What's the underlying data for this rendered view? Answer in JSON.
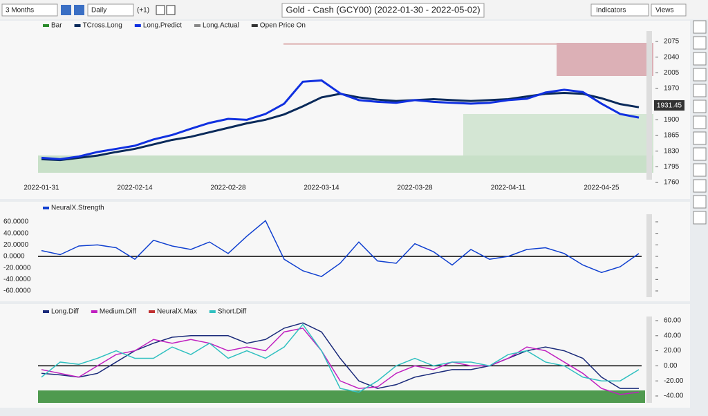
{
  "toolbar": {
    "range": "3 Months",
    "interval": "Daily",
    "offset": "(+1)",
    "title": "Gold - Cash (GCY00) (2022-01-30 - 2022-05-02)",
    "indicators": "Indicators",
    "views": "Views"
  },
  "chart_data": [
    {
      "type": "line",
      "price_label": "1931.45",
      "legend": [
        {
          "name": "Bar",
          "color": "#2a8a2a"
        },
        {
          "name": "TCross.Long",
          "color": "#0a2a5a"
        },
        {
          "name": "Long.Predict",
          "color": "#1030e0"
        },
        {
          "name": "Long.Actual",
          "color": "#888888"
        },
        {
          "name": "Open Price On",
          "color": "#333333"
        }
      ],
      "categories": [
        "2022-01-31",
        null,
        null,
        null,
        null,
        "2022-02-14",
        null,
        null,
        null,
        null,
        "2022-02-28",
        null,
        null,
        null,
        null,
        "2022-03-14",
        null,
        null,
        null,
        null,
        "2022-03-28",
        null,
        null,
        null,
        null,
        "2022-04-11",
        null,
        null,
        null,
        null,
        "2022-04-25",
        null,
        null
      ],
      "series": [
        {
          "name": "TCross.Long",
          "color": "#0a2a5a",
          "values": [
            1812,
            1810,
            1815,
            1820,
            1828,
            1835,
            1845,
            1855,
            1862,
            1872,
            1882,
            1892,
            1900,
            1912,
            1930,
            1950,
            1958,
            1950,
            1945,
            1942,
            1944,
            1946,
            1944,
            1942,
            1944,
            1946,
            1952,
            1958,
            1960,
            1958,
            1948,
            1935,
            1928
          ]
        },
        {
          "name": "Long.Predict",
          "color": "#1030e0",
          "values": [
            1815,
            1812,
            1818,
            1828,
            1835,
            1842,
            1856,
            1866,
            1880,
            1893,
            1902,
            1900,
            1913,
            1936,
            1985,
            1988,
            1959,
            1944,
            1940,
            1938,
            1944,
            1940,
            1938,
            1936,
            1938,
            1944,
            1947,
            1961,
            1967,
            1962,
            1936,
            1913,
            1905
          ]
        }
      ],
      "ylim": [
        1760,
        2075
      ],
      "yticks": [
        1760,
        1795,
        1830,
        1865,
        1900,
        1970,
        2005,
        2040,
        2075
      ]
    },
    {
      "type": "line",
      "legend": [
        {
          "name": "NeuralX.Strength",
          "color": "#1040d0"
        }
      ],
      "series": [
        {
          "name": "NeuralX.Strength",
          "color": "#1040d0",
          "values": [
            10,
            3,
            18,
            20,
            15,
            -5,
            28,
            18,
            12,
            25,
            5,
            35,
            62,
            -5,
            -25,
            -35,
            -12,
            25,
            -8,
            -12,
            22,
            8,
            -15,
            12,
            -5,
            0,
            12,
            15,
            5,
            -15,
            -28,
            -18,
            5
          ]
        }
      ],
      "ylim": [
        -60,
        60
      ],
      "yticks": [
        {
          "value": -60,
          "label": "-60.0000"
        },
        {
          "value": -40,
          "label": "-40.0000"
        },
        {
          "value": -20,
          "label": "-20.0000"
        },
        {
          "value": 0,
          "label": "0.0000"
        },
        {
          "value": 20,
          "label": "20.0000"
        },
        {
          "value": 40,
          "label": "40.0000"
        },
        {
          "value": 60,
          "label": "60.0000"
        }
      ]
    },
    {
      "type": "line",
      "legend": [
        {
          "name": "Long.Diff",
          "color": "#1a2a7a"
        },
        {
          "name": "Medium.Diff",
          "color": "#c020c0"
        },
        {
          "name": "NeuralX.Max",
          "color": "#c03030"
        },
        {
          "name": "Short.Diff",
          "color": "#30c0c0"
        }
      ],
      "series": [
        {
          "name": "Long.Diff",
          "color": "#1a2a7a",
          "values": [
            -10,
            -12,
            -15,
            -10,
            5,
            20,
            30,
            38,
            40,
            40,
            40,
            30,
            35,
            50,
            57,
            45,
            10,
            -20,
            -30,
            -25,
            -15,
            -10,
            -5,
            -5,
            0,
            10,
            20,
            25,
            20,
            10,
            -15,
            -30,
            -30
          ]
        },
        {
          "name": "Medium.Diff",
          "color": "#c020c0",
          "values": [
            -5,
            -10,
            -15,
            0,
            15,
            20,
            35,
            30,
            35,
            30,
            20,
            25,
            20,
            45,
            50,
            20,
            -20,
            -30,
            -28,
            -10,
            0,
            -5,
            5,
            0,
            0,
            10,
            25,
            20,
            5,
            -10,
            -30,
            -38,
            -35
          ]
        },
        {
          "name": "Short.Diff",
          "color": "#30c0c0",
          "values": [
            -15,
            5,
            2,
            10,
            20,
            10,
            10,
            25,
            15,
            30,
            10,
            20,
            10,
            25,
            55,
            20,
            -30,
            -35,
            -20,
            0,
            10,
            0,
            5,
            5,
            0,
            15,
            20,
            5,
            0,
            -15,
            -20,
            -20,
            -5
          ]
        }
      ],
      "ylim": [
        -40,
        60
      ],
      "yticks": [
        {
          "value": -40,
          "label": "-40.00"
        },
        {
          "value": -20,
          "label": "-20.00"
        },
        {
          "value": 0,
          "label": "0.00"
        },
        {
          "value": 20,
          "label": "20.00"
        },
        {
          "value": 40,
          "label": "40.00"
        },
        {
          "value": 60,
          "label": "60.00"
        }
      ]
    }
  ]
}
